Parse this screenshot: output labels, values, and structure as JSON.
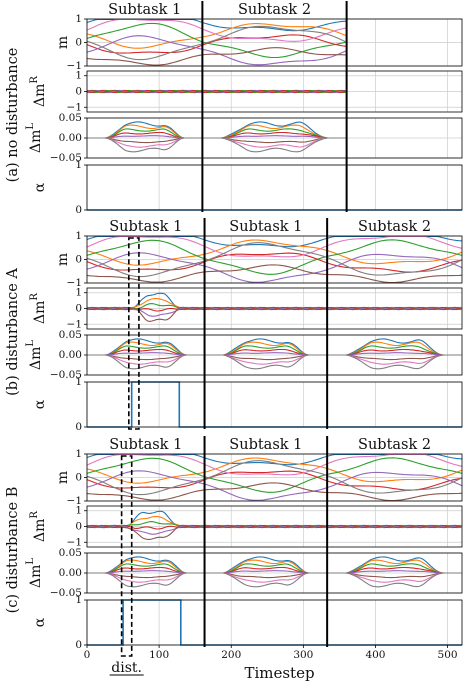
{
  "chart_data": [
    {
      "group_label": "(a) no disturbance",
      "type": "line",
      "subtasks": [
        "Subtask 1",
        "Subtask 2"
      ],
      "subtask_boundaries": [
        160,
        360
      ],
      "disturbance_window": null,
      "panels": [
        {
          "ylabel": "m",
          "ylim": [
            -1,
            1
          ],
          "yticks": [
            "1",
            "0",
            "−1"
          ],
          "tick_values": [
            1,
            0,
            -1
          ]
        },
        {
          "ylabel": "Δm^R",
          "ylim": [
            -1.3,
            1.3
          ],
          "yticks": [
            "1",
            "0",
            "−1"
          ],
          "tick_values": [
            1,
            0,
            -1
          ]
        },
        {
          "ylabel": "Δm^L",
          "ylim": [
            -0.05,
            0.05
          ],
          "yticks": [
            "0.05",
            "0.00",
            "−0.05"
          ],
          "tick_values": [
            0.05,
            0,
            -0.05
          ]
        },
        {
          "ylabel": "α",
          "ylim": [
            0,
            1
          ],
          "yticks": [
            "1",
            "0"
          ],
          "tick_values": [
            1,
            0
          ],
          "alpha_steps": [
            [
              0,
              0
            ],
            [
              520,
              0
            ]
          ]
        }
      ]
    },
    {
      "group_label": "(b) disturbance A",
      "type": "line",
      "subtasks": [
        "Subtask 1",
        "Subtask 1",
        "Subtask 2"
      ],
      "subtask_boundaries": [
        163,
        333
      ],
      "disturbance_window": [
        58,
        72
      ],
      "panels": [
        {
          "ylabel": "m",
          "ylim": [
            -1,
            1
          ],
          "yticks": [
            "1",
            "0",
            "−1"
          ],
          "tick_values": [
            1,
            0,
            -1
          ]
        },
        {
          "ylabel": "Δm^R",
          "ylim": [
            -1.3,
            1.3
          ],
          "yticks": [
            "1",
            "0",
            "−1"
          ],
          "tick_values": [
            1,
            0,
            -1
          ]
        },
        {
          "ylabel": "Δm^L",
          "ylim": [
            -0.05,
            0.05
          ],
          "yticks": [
            "0.05",
            "0.00",
            "−0.05"
          ],
          "tick_values": [
            0.05,
            0,
            -0.05
          ]
        },
        {
          "ylabel": "α",
          "ylim": [
            0,
            1
          ],
          "yticks": [
            "1",
            "0"
          ],
          "tick_values": [
            1,
            0
          ],
          "alpha_steps": [
            [
              0,
              0
            ],
            [
              62,
              0
            ],
            [
              62,
              1
            ],
            [
              128,
              1
            ],
            [
              128,
              0
            ],
            [
              520,
              0
            ]
          ]
        }
      ]
    },
    {
      "group_label": "(c) disturbance B",
      "type": "line",
      "subtasks": [
        "Subtask 1",
        "Subtask 1",
        "Subtask 2"
      ],
      "subtask_boundaries": [
        163,
        333
      ],
      "disturbance_window": [
        48,
        62
      ],
      "panels": [
        {
          "ylabel": "m",
          "ylim": [
            -1,
            1
          ],
          "yticks": [
            "1",
            "0",
            "−1"
          ],
          "tick_values": [
            1,
            0,
            -1
          ]
        },
        {
          "ylabel": "Δm^R",
          "ylim": [
            -1.3,
            1.3
          ],
          "yticks": [
            "1",
            "0",
            "−1"
          ],
          "tick_values": [
            1,
            0,
            -1
          ]
        },
        {
          "ylabel": "Δm^L",
          "ylim": [
            -0.05,
            0.05
          ],
          "yticks": [
            "0.05",
            "0.00",
            "−0.05"
          ],
          "tick_values": [
            0.05,
            0,
            -0.05
          ]
        },
        {
          "ylabel": "α",
          "ylim": [
            0,
            1
          ],
          "yticks": [
            "1",
            "0"
          ],
          "tick_values": [
            1,
            0
          ],
          "alpha_steps": [
            [
              0,
              0
            ],
            [
              50,
              0
            ],
            [
              50,
              1
            ],
            [
              130,
              1
            ],
            [
              130,
              0
            ],
            [
              520,
              0
            ]
          ]
        }
      ]
    }
  ],
  "x_axis": {
    "xlabel": "Timestep",
    "xlim": [
      0,
      520
    ],
    "ticks": [
      0,
      100,
      200,
      300,
      400,
      500
    ],
    "tick_labels": [
      "0",
      "100",
      "200",
      "300",
      "400",
      "500"
    ],
    "grid": true
  },
  "annotation": "dist.",
  "colors": {
    "series": [
      "#1f77b4",
      "#ff7f0e",
      "#2ca02c",
      "#d62728",
      "#9467bd",
      "#8c564b",
      "#e377c2",
      "#7f7f7f"
    ],
    "alpha_line": "#1f77b4",
    "grid": "#cccccc",
    "frame": "#000000"
  }
}
